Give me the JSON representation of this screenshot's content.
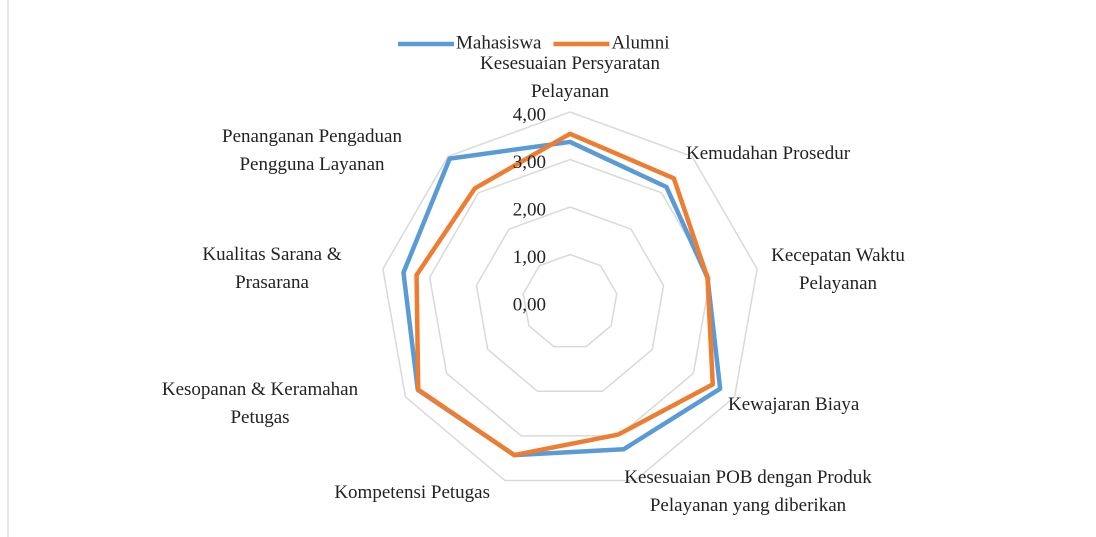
{
  "chart_data": {
    "type": "radar",
    "categories": [
      "Kesesuaian Persyaratan Pelayanan",
      "Kemudahan Prosedur",
      "Kecepatan Waktu Pelayanan",
      "Kewajaran Biaya",
      "Kesesuaian POB dengan Produk Pelayanan yang diberikan",
      "Kompetensi Petugas",
      "Kesopanan & Keramahan Petugas",
      "Kualitas Sarana & Prasarana",
      "Penanganan Pengaduan Pengguna Layanan"
    ],
    "series": [
      {
        "name": "Mahasiswa",
        "color": "#5b9bd5",
        "values": [
          3.37,
          3.16,
          2.94,
          3.65,
          3.3,
          3.43,
          3.7,
          3.56,
          3.94
        ]
      },
      {
        "name": "Alumni",
        "color": "#ed7d31",
        "values": [
          3.54,
          3.4,
          2.94,
          3.47,
          2.97,
          3.43,
          3.69,
          3.28,
          3.12
        ]
      }
    ],
    "ylim": [
      0,
      4
    ],
    "yticks": [
      {
        "value": 0,
        "label": "0,00"
      },
      {
        "value": 1,
        "label": "1,00"
      },
      {
        "value": 2,
        "label": "2,00"
      },
      {
        "value": 3,
        "label": "3,00"
      },
      {
        "value": 4,
        "label": "4,00"
      }
    ],
    "grid": true,
    "legend": "top"
  }
}
